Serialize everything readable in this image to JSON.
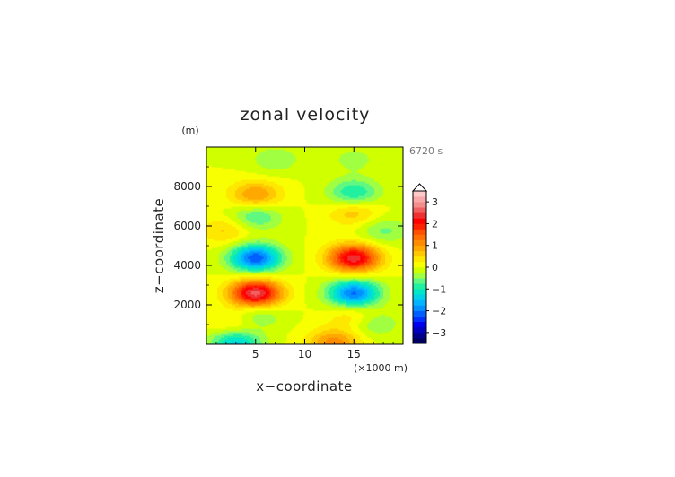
{
  "chart_data": {
    "type": "heatmap",
    "title": "zonal velocity",
    "xlabel": "x−coordinate",
    "ylabel": "z−coordinate",
    "x_unit_note": "(×1000 m)",
    "y_unit_note": "(m)",
    "time_label": "6720 s",
    "xlim": [
      0,
      20
    ],
    "ylim": [
      0,
      10000
    ],
    "x_ticks": [
      5,
      10,
      15
    ],
    "x_tick_labels": [
      "5",
      "10",
      "15"
    ],
    "y_ticks": [
      2000,
      4000,
      6000,
      8000
    ],
    "y_tick_labels": [
      "2000",
      "4000",
      "6000",
      "8000"
    ],
    "grid": false,
    "colorbar": {
      "levels": [
        -3.5,
        -3.25,
        -3,
        -2.75,
        -2.5,
        -2.25,
        -2,
        -1.75,
        -1.5,
        -1.25,
        -1,
        -0.75,
        -0.5,
        -0.25,
        0,
        0.25,
        0.5,
        0.75,
        1,
        1.25,
        1.5,
        1.75,
        2,
        2.25,
        2.5,
        2.75,
        3,
        3.25,
        3.5
      ],
      "colors": [
        "#000062",
        "#00008c",
        "#0000c0",
        "#0000f0",
        "#0030ff",
        "#0060ff",
        "#0090ff",
        "#00b4ff",
        "#00d2e8",
        "#00e6c8",
        "#20f0a0",
        "#60f880",
        "#a0ff40",
        "#d0ff00",
        "#f8ff00",
        "#ffe800",
        "#ffc800",
        "#ffa800",
        "#ff8c00",
        "#ff7000",
        "#ff5000",
        "#ff2000",
        "#ff0000",
        "#f03030",
        "#f06060",
        "#f48c8c",
        "#f8a8a8",
        "#fcc8c8"
      ],
      "tick_values": [
        3,
        2,
        1,
        0,
        -1,
        -2,
        -3
      ],
      "tick_labels": [
        "3",
        "2",
        "1",
        "0",
        "−1",
        "−2",
        "−3"
      ],
      "extend": "max"
    },
    "field_features": [
      {
        "x": 5,
        "z": 2600,
        "value": 2.3
      },
      {
        "x": 5,
        "z": 4400,
        "value": -1.9
      },
      {
        "x": 15,
        "z": 2600,
        "value": -1.8
      },
      {
        "x": 15,
        "z": 4400,
        "value": 2.1
      },
      {
        "x": 5,
        "z": 7600,
        "value": 0.9
      },
      {
        "x": 5,
        "z": 6500,
        "value": -0.7
      },
      {
        "x": 15,
        "z": 7700,
        "value": -0.9
      },
      {
        "x": 15,
        "z": 6700,
        "value": 0.6
      },
      {
        "x": 3,
        "z": 100,
        "value": -1.2
      },
      {
        "x": 13,
        "z": 100,
        "value": 1.0
      },
      {
        "x": 5,
        "z": 1500,
        "value": -0.6
      },
      {
        "x": 15,
        "z": 1500,
        "value": 0.5
      },
      {
        "x": 3,
        "z": 1100,
        "value": 0.5
      },
      {
        "x": 17,
        "z": 1100,
        "value": -0.5
      },
      {
        "x": 2,
        "z": 5800,
        "value": 0.5
      },
      {
        "x": 18,
        "z": 5800,
        "value": -0.5
      },
      {
        "x": 7,
        "z": 9400,
        "value": -0.4
      },
      {
        "x": 15,
        "z": 9400,
        "value": -0.3
      }
    ]
  }
}
